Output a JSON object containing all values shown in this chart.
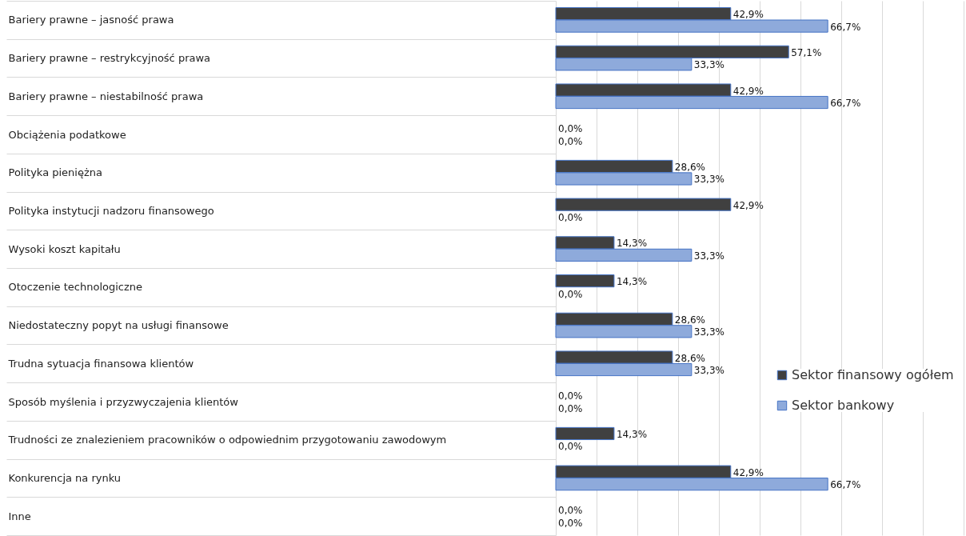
{
  "chart_data": {
    "type": "bar",
    "orientation": "horizontal",
    "categories": [
      "Bariery prawne – jasność prawa",
      "Bariery prawne – restrykcyjność prawa",
      "Bariery prawne – niestabilność prawa",
      "Obciążenia podatkowe",
      "Polityka pieniężna",
      "Polityka instytucji nadzoru finansowego",
      "Wysoki koszt kapitału",
      "Otoczenie technologiczne",
      "Niedostateczny popyt na usługi finansowe",
      "Trudna sytuacja finansowa klientów",
      "Sposób myślenia i przyzwyczajenia klientów",
      "Trudności ze znalezieniem pracowników o odpowiednim przygotowaniu zawodowym",
      "Konkurencja na rynku",
      "Inne"
    ],
    "series": [
      {
        "name": "Sektor finansowy ogółem",
        "color": "#404040",
        "values": [
          42.9,
          57.1,
          42.9,
          0,
          28.6,
          42.9,
          14.3,
          14.3,
          28.6,
          28.6,
          0,
          14.3,
          42.9,
          0
        ],
        "value_labels": [
          "42,9%",
          "57,1%",
          "42,9%",
          "0,0%",
          "28,6%",
          "42,9%",
          "14,3%",
          "14,3%",
          "28,6%",
          "28,6%",
          "0,0%",
          "14,3%",
          "42,9%",
          "0,0%"
        ]
      },
      {
        "name": "Sektor bankowy",
        "color": "#8eaadb",
        "values": [
          66.7,
          33.3,
          66.7,
          0,
          33.3,
          0,
          33.3,
          0,
          33.3,
          33.3,
          0,
          0,
          66.7,
          0
        ],
        "value_labels": [
          "66,7%",
          "33,3%",
          "66,7%",
          "0,0%",
          "33,3%",
          "0,0%",
          "33,3%",
          "0,0%",
          "33,3%",
          "33,3%",
          "0,0%",
          "0,0%",
          "66,7%",
          "0,0%"
        ]
      }
    ],
    "xlim": [
      0,
      100
    ],
    "xticks": [
      0,
      10,
      20,
      30,
      40,
      50,
      60,
      70,
      80,
      90,
      100
    ],
    "grid": "x",
    "tick_labels": "y",
    "legend": "right"
  }
}
